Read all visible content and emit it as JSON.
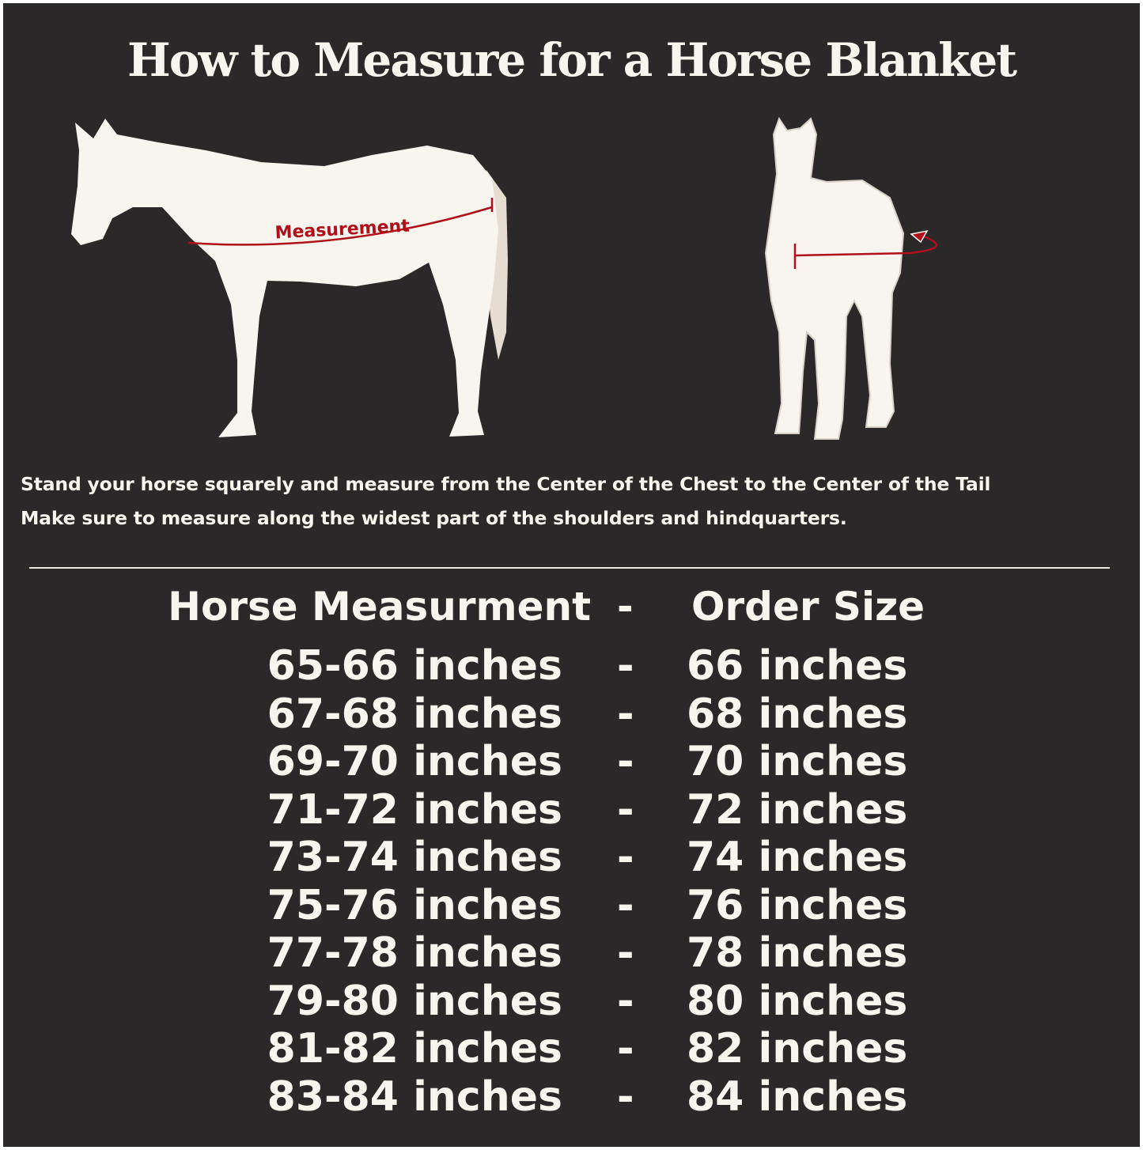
{
  "title": "How to Measure for a Horse Blanket",
  "diagram": {
    "side_label": "Measurement",
    "colors": {
      "background": "#2a2829",
      "horse": "#f8f4ee",
      "tail": "#e6dcd0",
      "measure_line": "#b0101a"
    }
  },
  "instructions": [
    "Stand your horse squarely and measure from the Center of the Chest to the Center of the Tail",
    "Make sure to measure along the widest part of the shoulders and hindquarters."
  ],
  "size_table": {
    "headers": {
      "measurement": "Horse Measurment",
      "separator": "-",
      "size": "Order Size"
    },
    "rows": [
      {
        "measurement": "65-66 inches",
        "separator": "-",
        "size": "66 inches"
      },
      {
        "measurement": "67-68 inches",
        "separator": "-",
        "size": "68 inches"
      },
      {
        "measurement": "69-70 inches",
        "separator": "-",
        "size": "70 inches"
      },
      {
        "measurement": "71-72 inches",
        "separator": "-",
        "size": "72 inches"
      },
      {
        "measurement": "73-74 inches",
        "separator": "-",
        "size": "74 inches"
      },
      {
        "measurement": "75-76 inches",
        "separator": "-",
        "size": "76 inches"
      },
      {
        "measurement": "77-78 inches",
        "separator": "-",
        "size": "78 inches"
      },
      {
        "measurement": "79-80 inches",
        "separator": "-",
        "size": "80 inches"
      },
      {
        "measurement": "81-82 inches",
        "separator": "-",
        "size": "82 inches"
      },
      {
        "measurement": "83-84 inches",
        "separator": "-",
        "size": "84 inches"
      }
    ]
  }
}
